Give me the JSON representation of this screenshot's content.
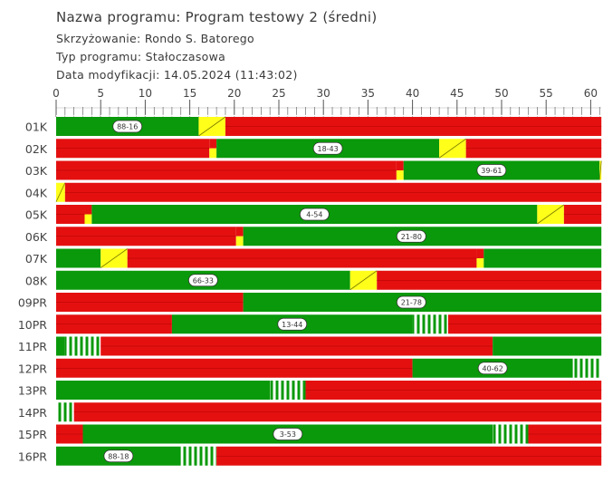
{
  "header": {
    "program_name": "Nazwa programu: Program testowy 2 (średni)",
    "intersection": "Skrzyżowanie: Rondo S. Batorego",
    "program_type": "Typ programu: Stałoczasowa",
    "modified": "Data modyfikacji: 14.05.2024 (11:43:02)"
  },
  "chart_data": {
    "type": "bar",
    "orientation": "horizontal-timeline",
    "xlim": [
      0,
      61.2
    ],
    "x_ticks": [
      0,
      5,
      10,
      15,
      20,
      25,
      30,
      35,
      40,
      45,
      50,
      55,
      60
    ],
    "x_minor_step": 1,
    "colors": {
      "red": "#e41010",
      "green": "#0a990a",
      "yellow": "#ffff1a",
      "red_yellow": "red over yellow",
      "flash": "green/white stripes"
    },
    "rows": [
      {
        "name": "01K",
        "label": "88-16",
        "segments": [
          [
            "green",
            0,
            16
          ],
          [
            "yellow",
            16,
            19
          ],
          [
            "red",
            19,
            61.2
          ]
        ]
      },
      {
        "name": "02K",
        "label": "18-43",
        "segments": [
          [
            "red",
            0,
            17.2
          ],
          [
            "redyellow",
            17.2,
            18
          ],
          [
            "green",
            18,
            43
          ],
          [
            "yellow",
            43,
            46
          ],
          [
            "red",
            46,
            61.2
          ]
        ]
      },
      {
        "name": "03K",
        "label": "39-61",
        "segments": [
          [
            "red",
            0,
            38.2
          ],
          [
            "redyellow",
            38.2,
            39
          ],
          [
            "green",
            39,
            61
          ],
          [
            "yellow",
            61,
            61.2
          ]
        ]
      },
      {
        "name": "04K",
        "label": "",
        "segments": [
          [
            "yellow",
            0,
            1
          ],
          [
            "red",
            1,
            61.2
          ]
        ]
      },
      {
        "name": "05K",
        "label": "4-54",
        "segments": [
          [
            "red",
            0,
            3.2
          ],
          [
            "redyellow",
            3.2,
            4
          ],
          [
            "green",
            4,
            54
          ],
          [
            "yellow",
            54,
            57
          ],
          [
            "red",
            57,
            61.2
          ]
        ]
      },
      {
        "name": "06K",
        "label": "21-80",
        "segments": [
          [
            "red",
            0,
            20.2
          ],
          [
            "redyellow",
            20.2,
            21
          ],
          [
            "green",
            21,
            61.2
          ]
        ]
      },
      {
        "name": "07K",
        "label": "",
        "segments": [
          [
            "green",
            0,
            5
          ],
          [
            "yellow",
            5,
            8
          ],
          [
            "red",
            8,
            47.2
          ],
          [
            "redyellow",
            47.2,
            48
          ],
          [
            "green",
            48,
            61.2
          ]
        ]
      },
      {
        "name": "08K",
        "label": "66-33",
        "segments": [
          [
            "green",
            0,
            33
          ],
          [
            "yellow",
            33,
            36
          ],
          [
            "red",
            36,
            61.2
          ]
        ]
      },
      {
        "name": "09PR",
        "label": "21-78",
        "segments": [
          [
            "red",
            0,
            21
          ],
          [
            "green",
            21,
            61.2
          ]
        ]
      },
      {
        "name": "10PR",
        "label": "13-44",
        "segments": [
          [
            "red",
            0,
            13
          ],
          [
            "green",
            13,
            40
          ],
          [
            "flash",
            40,
            44
          ],
          [
            "red",
            44,
            61.2
          ]
        ]
      },
      {
        "name": "11PR",
        "label": "",
        "segments": [
          [
            "green",
            0,
            1
          ],
          [
            "flash",
            1,
            5
          ],
          [
            "red",
            5,
            49
          ],
          [
            "green",
            49,
            61.2
          ]
        ]
      },
      {
        "name": "12PR",
        "label": "40-62",
        "segments": [
          [
            "red",
            0,
            40
          ],
          [
            "green",
            40,
            58
          ],
          [
            "flash",
            58,
            61.2
          ]
        ]
      },
      {
        "name": "13PR",
        "label": "",
        "segments": [
          [
            "green",
            0,
            24
          ],
          [
            "flash",
            24,
            28
          ],
          [
            "red",
            28,
            61.2
          ]
        ]
      },
      {
        "name": "14PR",
        "label": "",
        "segments": [
          [
            "flash",
            0,
            2
          ],
          [
            "red",
            2,
            61.2
          ]
        ]
      },
      {
        "name": "15PR",
        "label": "3-53",
        "segments": [
          [
            "red",
            0,
            3
          ],
          [
            "green",
            3,
            49
          ],
          [
            "flash",
            49,
            53
          ],
          [
            "red",
            53,
            61.2
          ]
        ]
      },
      {
        "name": "16PR",
        "label": "88-18",
        "segments": [
          [
            "green",
            0,
            14
          ],
          [
            "flash",
            14,
            18
          ],
          [
            "red",
            18,
            61.2
          ]
        ]
      }
    ]
  }
}
